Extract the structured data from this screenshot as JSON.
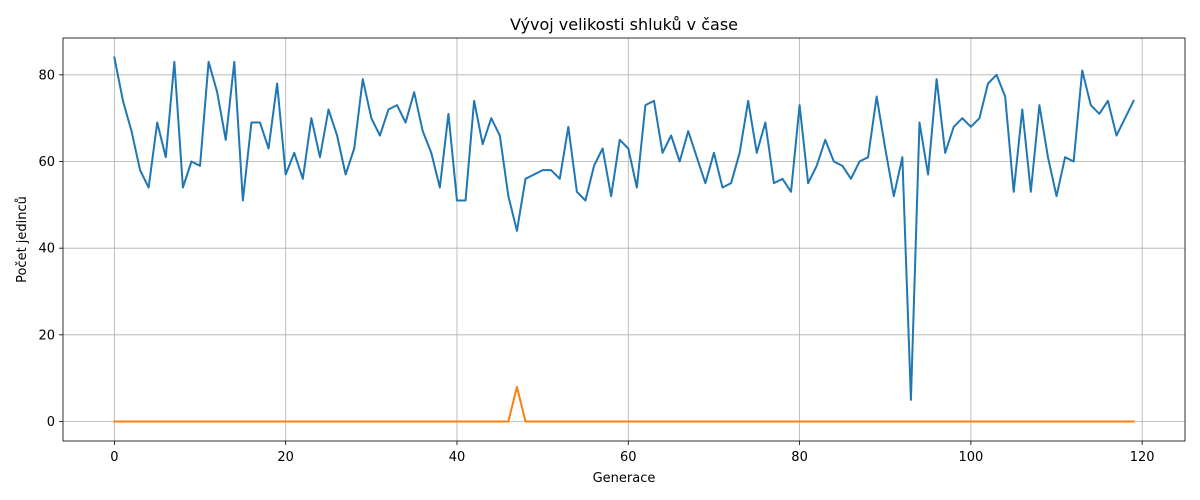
{
  "chart_data": {
    "type": "line",
    "title": "Vývoj velikosti shluků v čase",
    "xlabel": "Generace",
    "ylabel": "Počet jedinců",
    "xlim": [
      -6,
      125
    ],
    "ylim": [
      -4.5,
      88.5
    ],
    "xticks": [
      0,
      20,
      40,
      60,
      80,
      100,
      120
    ],
    "yticks": [
      0,
      20,
      40,
      60,
      80
    ],
    "grid": true,
    "series": [
      {
        "color": "#1f77b4",
        "values": [
          84,
          74,
          67,
          58,
          54,
          69,
          61,
          83,
          54,
          60,
          59,
          83,
          76,
          65,
          83,
          51,
          69,
          69,
          63,
          78,
          57,
          62,
          56,
          70,
          61,
          72,
          66,
          57,
          63,
          79,
          70,
          66,
          72,
          73,
          69,
          76,
          67,
          62,
          54,
          71,
          51,
          51,
          74,
          64,
          70,
          66,
          52,
          44,
          56,
          57,
          58,
          58,
          56,
          68,
          53,
          51,
          59,
          63,
          52,
          65,
          63,
          54,
          73,
          74,
          62,
          66,
          60,
          67,
          61,
          55,
          62,
          54,
          55,
          62,
          74,
          62,
          69,
          55,
          56,
          53,
          73,
          55,
          59,
          65,
          60,
          59,
          56,
          60,
          61,
          75,
          63,
          52,
          61,
          5,
          69,
          57,
          79,
          62,
          68,
          70,
          68,
          70,
          78,
          80,
          75,
          53,
          72,
          53,
          73,
          61,
          52,
          61,
          60,
          81,
          73,
          71,
          74,
          66,
          70,
          74
        ]
      },
      {
        "color": "#ff7f0e",
        "values": [
          0,
          0,
          0,
          0,
          0,
          0,
          0,
          0,
          0,
          0,
          0,
          0,
          0,
          0,
          0,
          0,
          0,
          0,
          0,
          0,
          0,
          0,
          0,
          0,
          0,
          0,
          0,
          0,
          0,
          0,
          0,
          0,
          0,
          0,
          0,
          0,
          0,
          0,
          0,
          0,
          0,
          0,
          0,
          0,
          0,
          0,
          0,
          8,
          0,
          0,
          0,
          0,
          0,
          0,
          0,
          0,
          0,
          0,
          0,
          0,
          0,
          0,
          0,
          0,
          0,
          0,
          0,
          0,
          0,
          0,
          0,
          0,
          0,
          0,
          0,
          0,
          0,
          0,
          0,
          0,
          0,
          0,
          0,
          0,
          0,
          0,
          0,
          0,
          0,
          0,
          0,
          0,
          0,
          0,
          0,
          0,
          0,
          0,
          0,
          0,
          0,
          0,
          0,
          0,
          0,
          0,
          0,
          0,
          0,
          0,
          0,
          0,
          0,
          0,
          0,
          0,
          0,
          0,
          0,
          0
        ]
      }
    ]
  }
}
